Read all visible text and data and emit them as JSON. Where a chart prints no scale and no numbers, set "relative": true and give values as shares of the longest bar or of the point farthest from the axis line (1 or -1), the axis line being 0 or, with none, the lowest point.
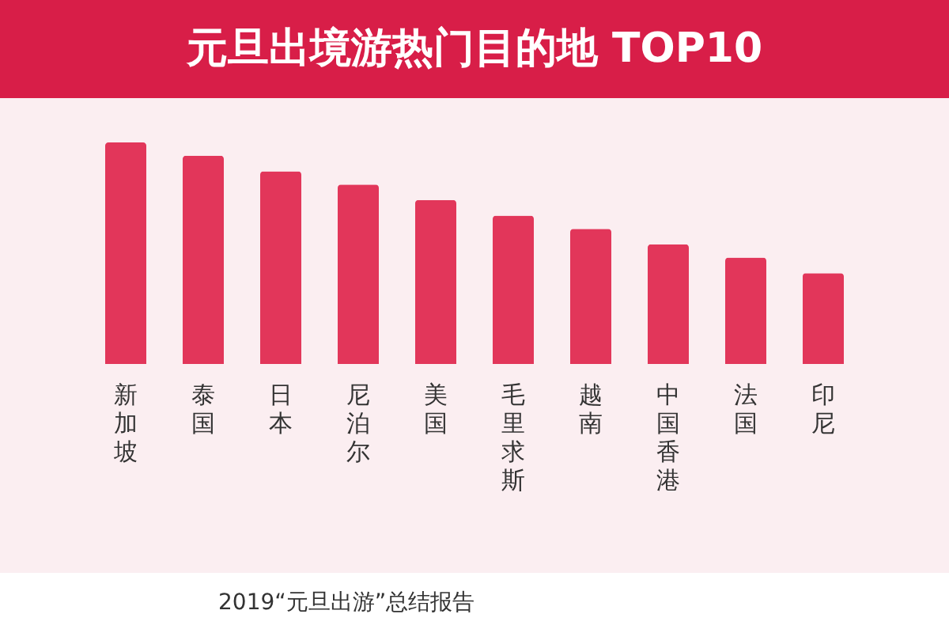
{
  "chart_data": {
    "type": "bar",
    "title": "元旦出境游热门目的地 TOP10",
    "categories": [
      "新加坡",
      "泰国",
      "日本",
      "尼泊尔",
      "美国",
      "毛里求斯",
      "越南",
      "中国香港",
      "法国",
      "印尼"
    ],
    "values": [
      1,
      0.94,
      0.87,
      0.81,
      0.74,
      0.67,
      0.61,
      0.54,
      0.48,
      0.41
    ],
    "color": "#e2365a",
    "relative": true,
    "grid": false,
    "annotations": [
      "2019“元旦出游”总结报告"
    ]
  }
}
